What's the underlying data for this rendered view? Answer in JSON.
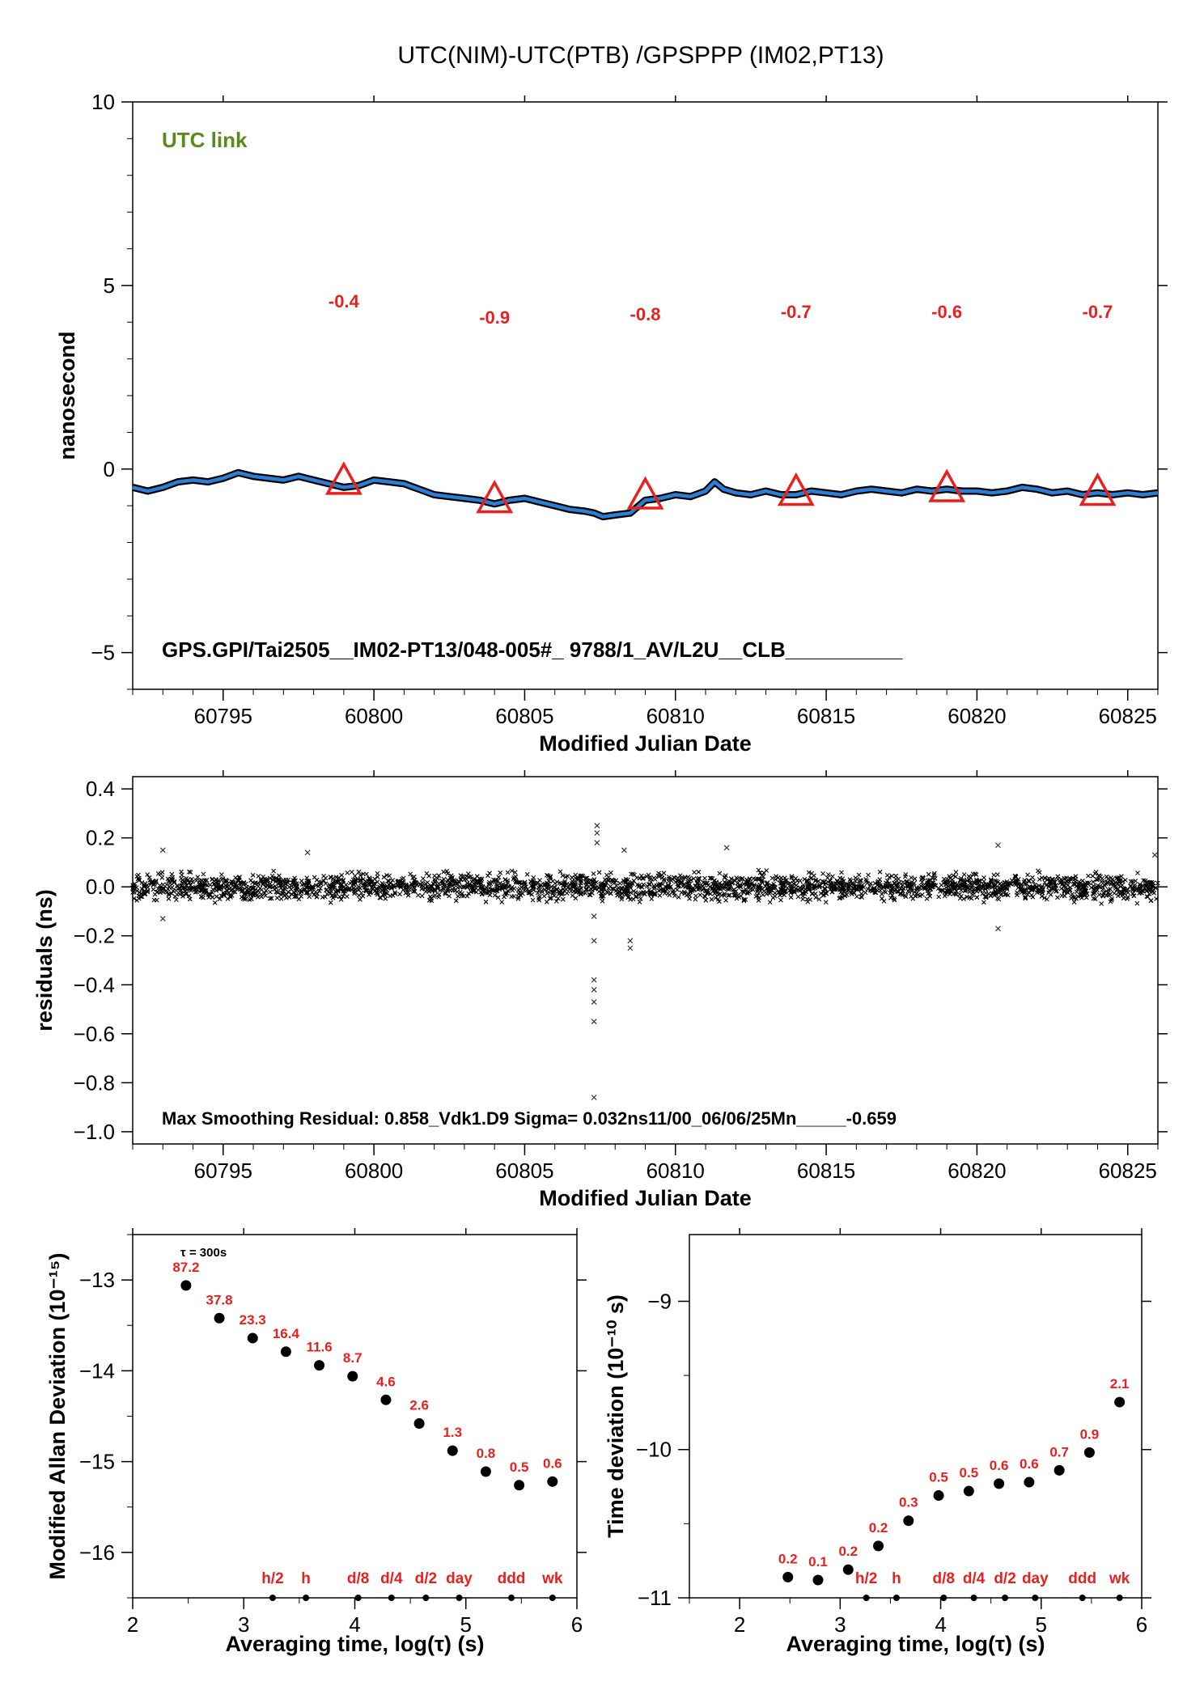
{
  "figure": {
    "title": "UTC(NIM)-UTC(PTB)  /GPSPPP  (IM02,PT13)"
  },
  "colors": {
    "axis": "#000000",
    "series": "#2a7fd4",
    "marker": "#e8201e",
    "label_green": "#5a8a1a",
    "label_red": "#e8201e"
  },
  "chart_data": [
    {
      "id": "top",
      "type": "line",
      "xlabel": "Modified Julian Date",
      "ylabel": "nanosecond",
      "xlim": [
        60792,
        60826
      ],
      "ylim": [
        -6,
        10
      ],
      "xticks": [
        60795,
        60800,
        60805,
        60810,
        60815,
        60820,
        60825
      ],
      "yticks": [
        -5,
        0,
        5,
        10
      ],
      "annotation_tl": "UTC link",
      "annotation_bottom": "GPS.GPI/Tai2505__IM02-PT13/048-005#_  9788/1_AV/L2U__CLB__________",
      "series": [
        {
          "x": [
            60792,
            60792.5,
            60793,
            60793.5,
            60794,
            60794.5,
            60795,
            60795.5,
            60796,
            60796.5,
            60797,
            60797.5,
            60798,
            60798.5,
            60799,
            60799.5,
            60800,
            60800.5,
            60801,
            60801.5,
            60802,
            60802.5,
            60803,
            60803.5,
            60804,
            60804.5,
            60805,
            60805.5,
            60806,
            60806.5,
            60807,
            60807.3,
            60807.6,
            60808,
            60808.5,
            60809,
            60809.5,
            60810,
            60810.5,
            60811,
            60811.3,
            60811.6,
            60812,
            60812.5,
            60813,
            60813.5,
            60814,
            60814.5,
            60815,
            60815.5,
            60816,
            60816.5,
            60817,
            60817.5,
            60818,
            60818.5,
            60819,
            60819.5,
            60820,
            60820.5,
            60821,
            60821.5,
            60822,
            60822.5,
            60823,
            60823.5,
            60824,
            60824.5,
            60825,
            60825.5,
            60826
          ],
          "y": [
            -0.5,
            -0.6,
            -0.5,
            -0.35,
            -0.3,
            -0.35,
            -0.25,
            -0.1,
            -0.2,
            -0.25,
            -0.3,
            -0.2,
            -0.3,
            -0.4,
            -0.5,
            -0.45,
            -0.3,
            -0.35,
            -0.4,
            -0.55,
            -0.7,
            -0.75,
            -0.8,
            -0.85,
            -0.95,
            -0.85,
            -0.8,
            -0.9,
            -1.0,
            -1.1,
            -1.15,
            -1.2,
            -1.3,
            -1.25,
            -1.2,
            -0.85,
            -0.8,
            -0.7,
            -0.75,
            -0.6,
            -0.35,
            -0.55,
            -0.65,
            -0.7,
            -0.6,
            -0.7,
            -0.7,
            -0.6,
            -0.65,
            -0.7,
            -0.6,
            -0.55,
            -0.6,
            -0.65,
            -0.55,
            -0.6,
            -0.55,
            -0.6,
            -0.6,
            -0.65,
            -0.6,
            -0.5,
            -0.55,
            -0.65,
            -0.6,
            -0.7,
            -0.65,
            -0.7,
            -0.65,
            -0.7,
            -0.65
          ]
        }
      ],
      "markers": [
        {
          "x": 60799,
          "y": -0.4,
          "label": "-0.4"
        },
        {
          "x": 60804,
          "y": -0.9,
          "label": "-0.9"
        },
        {
          "x": 60809,
          "y": -0.8,
          "label": "-0.8"
        },
        {
          "x": 60814,
          "y": -0.7,
          "label": "-0.7"
        },
        {
          "x": 60819,
          "y": -0.6,
          "label": "-0.6"
        },
        {
          "x": 60824,
          "y": -0.7,
          "label": "-0.7"
        }
      ]
    },
    {
      "id": "residuals",
      "type": "scatter",
      "xlabel": "Modified Julian Date",
      "ylabel": "residuals (ns)",
      "xlim": [
        60792,
        60826
      ],
      "ylim": [
        -1.05,
        0.45
      ],
      "xticks": [
        60795,
        60800,
        60805,
        60810,
        60815,
        60820,
        60825
      ],
      "yticks": [
        -1.0,
        -0.8,
        -0.6,
        -0.4,
        -0.2,
        0.0,
        0.2,
        0.4
      ],
      "ytick_labels": [
        "−1.0",
        "−0.8",
        "−0.6",
        "−0.4",
        "−0.2",
        "0.0",
        "0.2",
        "0.4"
      ],
      "annotation_bottom": "Max Smoothing Residual: 0.858_Vdk1.D9  Sigma= 0.032ns11/00_06/06/25Mn_____-0.659",
      "outliers": [
        {
          "x": 60807.3,
          "y": -0.86
        },
        {
          "x": 60807.3,
          "y": -0.55
        },
        {
          "x": 60807.3,
          "y": -0.47
        },
        {
          "x": 60807.3,
          "y": -0.42
        },
        {
          "x": 60807.3,
          "y": -0.38
        },
        {
          "x": 60807.3,
          "y": -0.22
        },
        {
          "x": 60807.3,
          "y": -0.12
        },
        {
          "x": 60807.4,
          "y": 0.25
        },
        {
          "x": 60807.4,
          "y": 0.22
        },
        {
          "x": 60807.4,
          "y": 0.18
        },
        {
          "x": 60808.5,
          "y": -0.22
        },
        {
          "x": 60808.5,
          "y": -0.25
        },
        {
          "x": 60808.3,
          "y": 0.15
        },
        {
          "x": 60811.7,
          "y": 0.16
        },
        {
          "x": 60820.7,
          "y": 0.17
        },
        {
          "x": 60820.7,
          "y": -0.17
        },
        {
          "x": 60793,
          "y": 0.15
        },
        {
          "x": 60793,
          "y": -0.13
        },
        {
          "x": 60797.8,
          "y": 0.14
        },
        {
          "x": 60825.9,
          "y": 0.13
        }
      ]
    },
    {
      "id": "mdev",
      "type": "scatter",
      "xlabel": "Averaging time, log(τ) (s)",
      "ylabel": "Modified Allan Deviation (10⁻¹⁵)",
      "xlim": [
        2,
        6
      ],
      "ylim": [
        -16.5,
        -12.5
      ],
      "xticks": [
        2,
        3,
        4,
        5,
        6
      ],
      "yticks": [
        -16,
        -15,
        -14,
        -13
      ],
      "ytick_labels": [
        "−16",
        "−15",
        "−14",
        "−13"
      ],
      "tau_label": "τ = 300s",
      "x": [
        2.48,
        2.78,
        3.08,
        3.38,
        3.68,
        3.98,
        4.28,
        4.58,
        4.88,
        5.18,
        5.48,
        5.78
      ],
      "y": [
        -13.06,
        -13.42,
        -13.64,
        -13.79,
        -13.94,
        -14.06,
        -14.32,
        -14.58,
        -14.88,
        -15.11,
        -15.26,
        -15.22
      ],
      "labels": [
        "87.2",
        "37.8",
        "23.3",
        "16.4",
        "11.6",
        "8.7",
        "4.6",
        "2.6",
        "1.3",
        "0.8",
        "0.5",
        "0.6"
      ],
      "ref_marks": [
        {
          "x": 3.26,
          "label": "h/2"
        },
        {
          "x": 3.56,
          "label": "h"
        },
        {
          "x": 4.03,
          "label": "d/8"
        },
        {
          "x": 4.33,
          "label": "d/4"
        },
        {
          "x": 4.64,
          "label": "d/2"
        },
        {
          "x": 4.94,
          "label": "day"
        },
        {
          "x": 5.41,
          "label": "ddd"
        },
        {
          "x": 5.78,
          "label": "wk"
        }
      ]
    },
    {
      "id": "tdev",
      "type": "scatter",
      "xlabel": "Averaging time, log(τ) (s)",
      "ylabel": "Time deviation (10⁻¹⁰ s)",
      "xlim": [
        1.5,
        6
      ],
      "ylim": [
        -11,
        -8.55
      ],
      "xticks": [
        2,
        3,
        4,
        5,
        6
      ],
      "yticks": [
        -11,
        -10,
        -9
      ],
      "ytick_labels": [
        "−11",
        "−10",
        "−9"
      ],
      "x": [
        2.48,
        2.78,
        3.08,
        3.38,
        3.68,
        3.98,
        4.28,
        4.58,
        4.88,
        5.18,
        5.48,
        5.78
      ],
      "y": [
        -10.86,
        -10.88,
        -10.81,
        -10.65,
        -10.48,
        -10.31,
        -10.28,
        -10.23,
        -10.22,
        -10.14,
        -10.02,
        -9.68
      ],
      "labels": [
        "0.2",
        "0.1",
        "0.2",
        "0.2",
        "0.3",
        "0.5",
        "0.5",
        "0.6",
        "0.6",
        "0.7",
        "0.9",
        "2.1"
      ],
      "ref_marks": [
        {
          "x": 3.26,
          "label": "h/2"
        },
        {
          "x": 3.56,
          "label": "h"
        },
        {
          "x": 4.03,
          "label": "d/8"
        },
        {
          "x": 4.33,
          "label": "d/4"
        },
        {
          "x": 4.64,
          "label": "d/2"
        },
        {
          "x": 4.94,
          "label": "day"
        },
        {
          "x": 5.41,
          "label": "ddd"
        },
        {
          "x": 5.78,
          "label": "wk"
        }
      ]
    }
  ]
}
